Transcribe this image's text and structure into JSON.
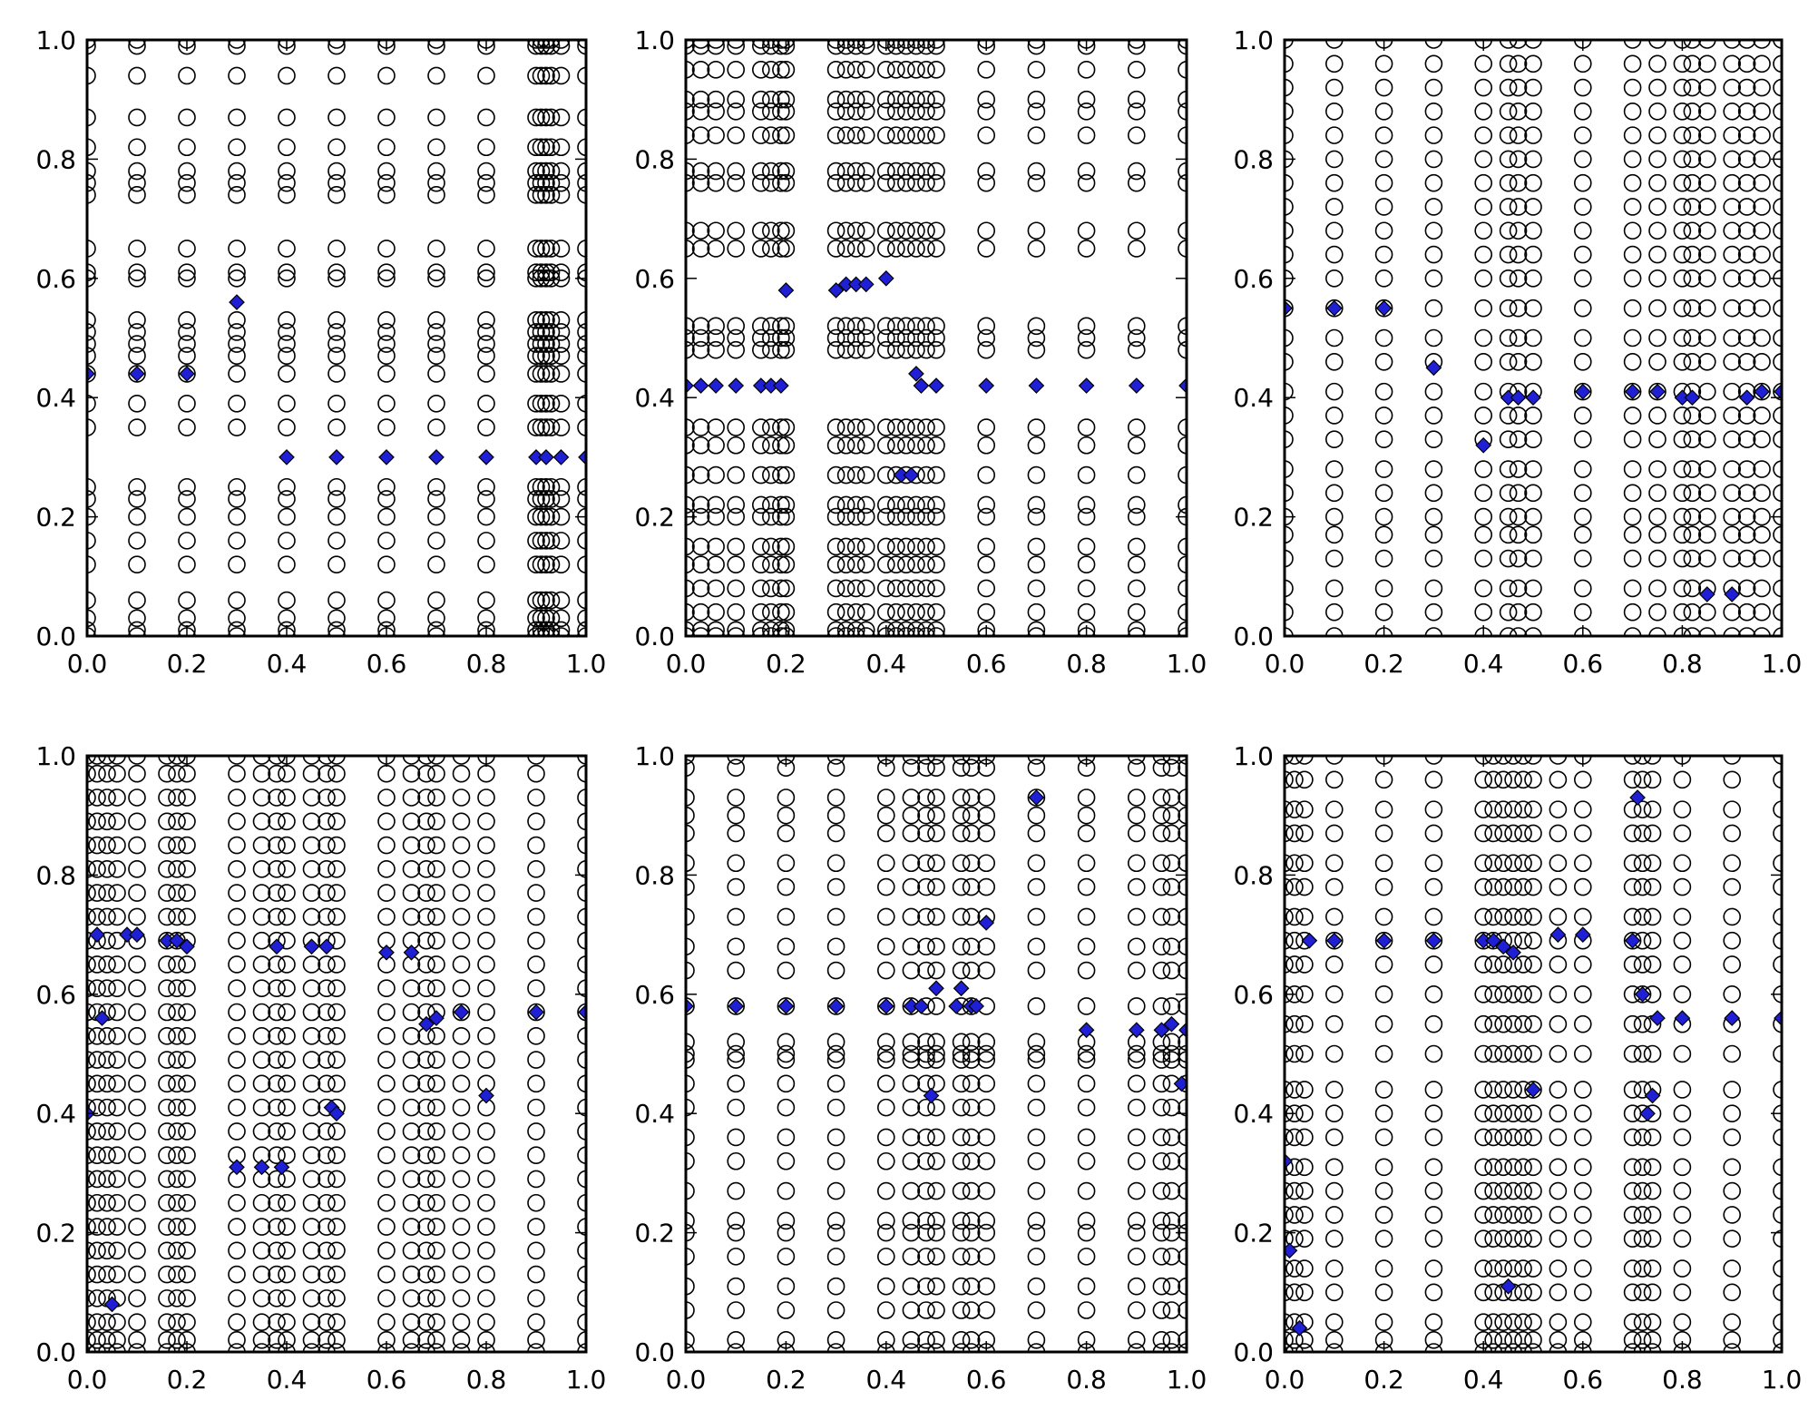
{
  "figure": {
    "layout": "2 rows x 3 columns of scatter subplots",
    "background": "#ffffff",
    "axis_color": "#000000",
    "circle_marker": {
      "fill": "none",
      "stroke": "#000000",
      "shape": "open-circle"
    },
    "diamond_marker": {
      "fill": "#1f1fd6",
      "stroke": "#000000",
      "shape": "diamond"
    }
  },
  "chart_data": [
    {
      "type": "scatter",
      "title": "",
      "xlabel": "",
      "ylabel": "",
      "xlim": [
        0,
        1
      ],
      "ylim": [
        0,
        1
      ],
      "xticks": [
        "0.0",
        "0.2",
        "0.4",
        "0.6",
        "0.8",
        "1.0"
      ],
      "yticks": [
        "0.0",
        "0.2",
        "0.4",
        "0.6",
        "0.8",
        "1.0"
      ],
      "grid": false,
      "circle_columns": [
        0.0,
        0.1,
        0.2,
        0.3,
        0.4,
        0.5,
        0.6,
        0.7,
        0.8,
        0.9,
        0.91,
        0.92,
        0.93,
        0.95,
        1.0
      ],
      "circle_rows": [
        0.0,
        0.01,
        0.03,
        0.06,
        0.12,
        0.16,
        0.2,
        0.23,
        0.25,
        0.35,
        0.39,
        0.44,
        0.47,
        0.49,
        0.51,
        0.53,
        0.6,
        0.61,
        0.65,
        0.74,
        0.76,
        0.78,
        0.82,
        0.87,
        0.94,
        0.99,
        1.0
      ],
      "diamonds": {
        "x": [
          0.0,
          0.1,
          0.2,
          0.3,
          0.4,
          0.5,
          0.6,
          0.7,
          0.8,
          0.9,
          0.92,
          0.95,
          1.0
        ],
        "y": [
          0.44,
          0.44,
          0.44,
          0.56,
          0.3,
          0.3,
          0.3,
          0.3,
          0.3,
          0.3,
          0.3,
          0.3,
          0.3
        ]
      }
    },
    {
      "type": "scatter",
      "title": "",
      "xlabel": "",
      "ylabel": "",
      "xlim": [
        0,
        1
      ],
      "ylim": [
        0,
        1
      ],
      "xticks": [
        "0.0",
        "0.2",
        "0.4",
        "0.6",
        "0.8",
        "1.0"
      ],
      "yticks": [
        "0.0",
        "0.2",
        "0.4",
        "0.6",
        "0.8",
        "1.0"
      ],
      "grid": false,
      "circle_columns": [
        0.0,
        0.03,
        0.06,
        0.1,
        0.15,
        0.17,
        0.19,
        0.2,
        0.3,
        0.32,
        0.34,
        0.36,
        0.4,
        0.42,
        0.44,
        0.46,
        0.48,
        0.5,
        0.6,
        0.7,
        0.8,
        0.9,
        1.0
      ],
      "circle_rows": [
        0.0,
        0.01,
        0.04,
        0.08,
        0.12,
        0.15,
        0.2,
        0.22,
        0.27,
        0.32,
        0.35,
        0.48,
        0.5,
        0.52,
        0.65,
        0.68,
        0.76,
        0.78,
        0.84,
        0.88,
        0.9,
        0.95,
        0.99,
        1.0
      ],
      "diamonds": {
        "x": [
          0.0,
          0.03,
          0.06,
          0.1,
          0.15,
          0.17,
          0.19,
          0.2,
          0.3,
          0.32,
          0.34,
          0.36,
          0.4,
          0.43,
          0.45,
          0.46,
          0.47,
          0.5,
          0.6,
          0.7,
          0.8,
          0.9,
          1.0
        ],
        "y": [
          0.42,
          0.42,
          0.42,
          0.42,
          0.42,
          0.42,
          0.42,
          0.58,
          0.58,
          0.59,
          0.59,
          0.59,
          0.6,
          0.27,
          0.27,
          0.44,
          0.42,
          0.42,
          0.42,
          0.42,
          0.42,
          0.42,
          0.42
        ]
      }
    },
    {
      "type": "scatter",
      "title": "",
      "xlabel": "",
      "ylabel": "",
      "xlim": [
        0,
        1
      ],
      "ylim": [
        0,
        1
      ],
      "xticks": [
        "0.0",
        "0.2",
        "0.4",
        "0.6",
        "0.8",
        "1.0"
      ],
      "yticks": [
        "0.0",
        "0.2",
        "0.4",
        "0.6",
        "0.8",
        "1.0"
      ],
      "grid": false,
      "circle_columns": [
        0.0,
        0.1,
        0.2,
        0.3,
        0.4,
        0.45,
        0.47,
        0.5,
        0.6,
        0.7,
        0.75,
        0.8,
        0.82,
        0.85,
        0.9,
        0.93,
        0.96,
        1.0
      ],
      "circle_rows": [
        0.0,
        0.04,
        0.08,
        0.13,
        0.17,
        0.2,
        0.24,
        0.28,
        0.33,
        0.37,
        0.41,
        0.46,
        0.5,
        0.55,
        0.6,
        0.64,
        0.68,
        0.72,
        0.76,
        0.8,
        0.84,
        0.88,
        0.92,
        0.96,
        1.0
      ],
      "diamonds": {
        "x": [
          0.0,
          0.1,
          0.2,
          0.3,
          0.4,
          0.45,
          0.47,
          0.5,
          0.6,
          0.7,
          0.75,
          0.8,
          0.82,
          0.85,
          0.9,
          0.93,
          0.96,
          1.0
        ],
        "y": [
          0.55,
          0.55,
          0.55,
          0.45,
          0.32,
          0.4,
          0.4,
          0.4,
          0.41,
          0.41,
          0.41,
          0.4,
          0.4,
          0.07,
          0.07,
          0.4,
          0.41,
          0.41
        ]
      }
    },
    {
      "type": "scatter",
      "title": "",
      "xlabel": "",
      "ylabel": "",
      "xlim": [
        0,
        1
      ],
      "ylim": [
        0,
        1
      ],
      "xticks": [
        "0.0",
        "0.2",
        "0.4",
        "0.6",
        "0.8",
        "1.0"
      ],
      "yticks": [
        "0.0",
        "0.2",
        "0.4",
        "0.6",
        "0.8",
        "1.0"
      ],
      "grid": false,
      "circle_columns": [
        0.0,
        0.02,
        0.04,
        0.06,
        0.1,
        0.16,
        0.18,
        0.2,
        0.3,
        0.35,
        0.38,
        0.4,
        0.45,
        0.48,
        0.5,
        0.6,
        0.65,
        0.68,
        0.7,
        0.75,
        0.8,
        0.9,
        1.0
      ],
      "circle_rows": [
        0.0,
        0.02,
        0.05,
        0.09,
        0.13,
        0.17,
        0.21,
        0.25,
        0.29,
        0.33,
        0.37,
        0.41,
        0.45,
        0.49,
        0.53,
        0.57,
        0.61,
        0.65,
        0.69,
        0.73,
        0.77,
        0.81,
        0.85,
        0.89,
        0.93,
        0.97,
        1.0
      ],
      "diamonds": {
        "x": [
          0.0,
          0.02,
          0.03,
          0.05,
          0.08,
          0.1,
          0.16,
          0.18,
          0.2,
          0.3,
          0.35,
          0.38,
          0.39,
          0.45,
          0.48,
          0.49,
          0.5,
          0.6,
          0.65,
          0.68,
          0.7,
          0.75,
          0.8,
          0.9,
          1.0
        ],
        "y": [
          0.4,
          0.7,
          0.56,
          0.08,
          0.7,
          0.7,
          0.69,
          0.69,
          0.68,
          0.31,
          0.31,
          0.68,
          0.31,
          0.68,
          0.68,
          0.41,
          0.4,
          0.67,
          0.67,
          0.55,
          0.56,
          0.57,
          0.43,
          0.57,
          0.57
        ]
      }
    },
    {
      "type": "scatter",
      "title": "",
      "xlabel": "",
      "ylabel": "",
      "xlim": [
        0,
        1
      ],
      "ylim": [
        0,
        1
      ],
      "xticks": [
        "0.0",
        "0.2",
        "0.4",
        "0.6",
        "0.8",
        "1.0"
      ],
      "yticks": [
        "0.0",
        "0.2",
        "0.4",
        "0.6",
        "0.8",
        "1.0"
      ],
      "grid": false,
      "circle_columns": [
        0.0,
        0.1,
        0.2,
        0.3,
        0.4,
        0.45,
        0.48,
        0.5,
        0.55,
        0.57,
        0.6,
        0.7,
        0.8,
        0.9,
        0.95,
        0.97,
        1.0
      ],
      "circle_rows": [
        0.0,
        0.02,
        0.07,
        0.11,
        0.16,
        0.2,
        0.22,
        0.27,
        0.32,
        0.36,
        0.41,
        0.45,
        0.49,
        0.5,
        0.52,
        0.58,
        0.64,
        0.68,
        0.73,
        0.78,
        0.82,
        0.87,
        0.9,
        0.93,
        0.98,
        1.0
      ],
      "diamonds": {
        "x": [
          0.0,
          0.1,
          0.2,
          0.3,
          0.4,
          0.45,
          0.47,
          0.49,
          0.5,
          0.54,
          0.55,
          0.57,
          0.58,
          0.6,
          0.7,
          0.8,
          0.9,
          0.95,
          0.97,
          0.99,
          1.0
        ],
        "y": [
          0.58,
          0.58,
          0.58,
          0.58,
          0.58,
          0.58,
          0.58,
          0.43,
          0.61,
          0.58,
          0.61,
          0.58,
          0.58,
          0.72,
          0.93,
          0.54,
          0.54,
          0.54,
          0.55,
          0.45,
          0.54
        ]
      }
    },
    {
      "type": "scatter",
      "title": "",
      "xlabel": "",
      "ylabel": "",
      "xlim": [
        0,
        1
      ],
      "ylim": [
        0,
        1
      ],
      "xticks": [
        "0.0",
        "0.2",
        "0.4",
        "0.6",
        "0.8",
        "1.0"
      ],
      "yticks": [
        "0.0",
        "0.2",
        "0.4",
        "0.6",
        "0.8",
        "1.0"
      ],
      "grid": false,
      "circle_columns": [
        0.0,
        0.02,
        0.04,
        0.1,
        0.2,
        0.3,
        0.4,
        0.42,
        0.44,
        0.46,
        0.48,
        0.5,
        0.55,
        0.6,
        0.7,
        0.72,
        0.74,
        0.8,
        0.9,
        1.0
      ],
      "circle_rows": [
        0.0,
        0.02,
        0.05,
        0.1,
        0.14,
        0.19,
        0.23,
        0.27,
        0.31,
        0.36,
        0.4,
        0.44,
        0.5,
        0.55,
        0.6,
        0.65,
        0.69,
        0.73,
        0.78,
        0.82,
        0.87,
        0.91,
        0.96,
        1.0
      ],
      "diamonds": {
        "x": [
          0.0,
          0.01,
          0.03,
          0.05,
          0.1,
          0.2,
          0.3,
          0.4,
          0.42,
          0.44,
          0.45,
          0.46,
          0.5,
          0.55,
          0.6,
          0.7,
          0.71,
          0.72,
          0.73,
          0.74,
          0.75,
          0.8,
          0.9,
          1.0
        ],
        "y": [
          0.32,
          0.17,
          0.04,
          0.69,
          0.69,
          0.69,
          0.69,
          0.69,
          0.69,
          0.68,
          0.11,
          0.67,
          0.44,
          0.7,
          0.7,
          0.69,
          0.93,
          0.6,
          0.4,
          0.43,
          0.56,
          0.56,
          0.56,
          0.56
        ]
      }
    }
  ]
}
